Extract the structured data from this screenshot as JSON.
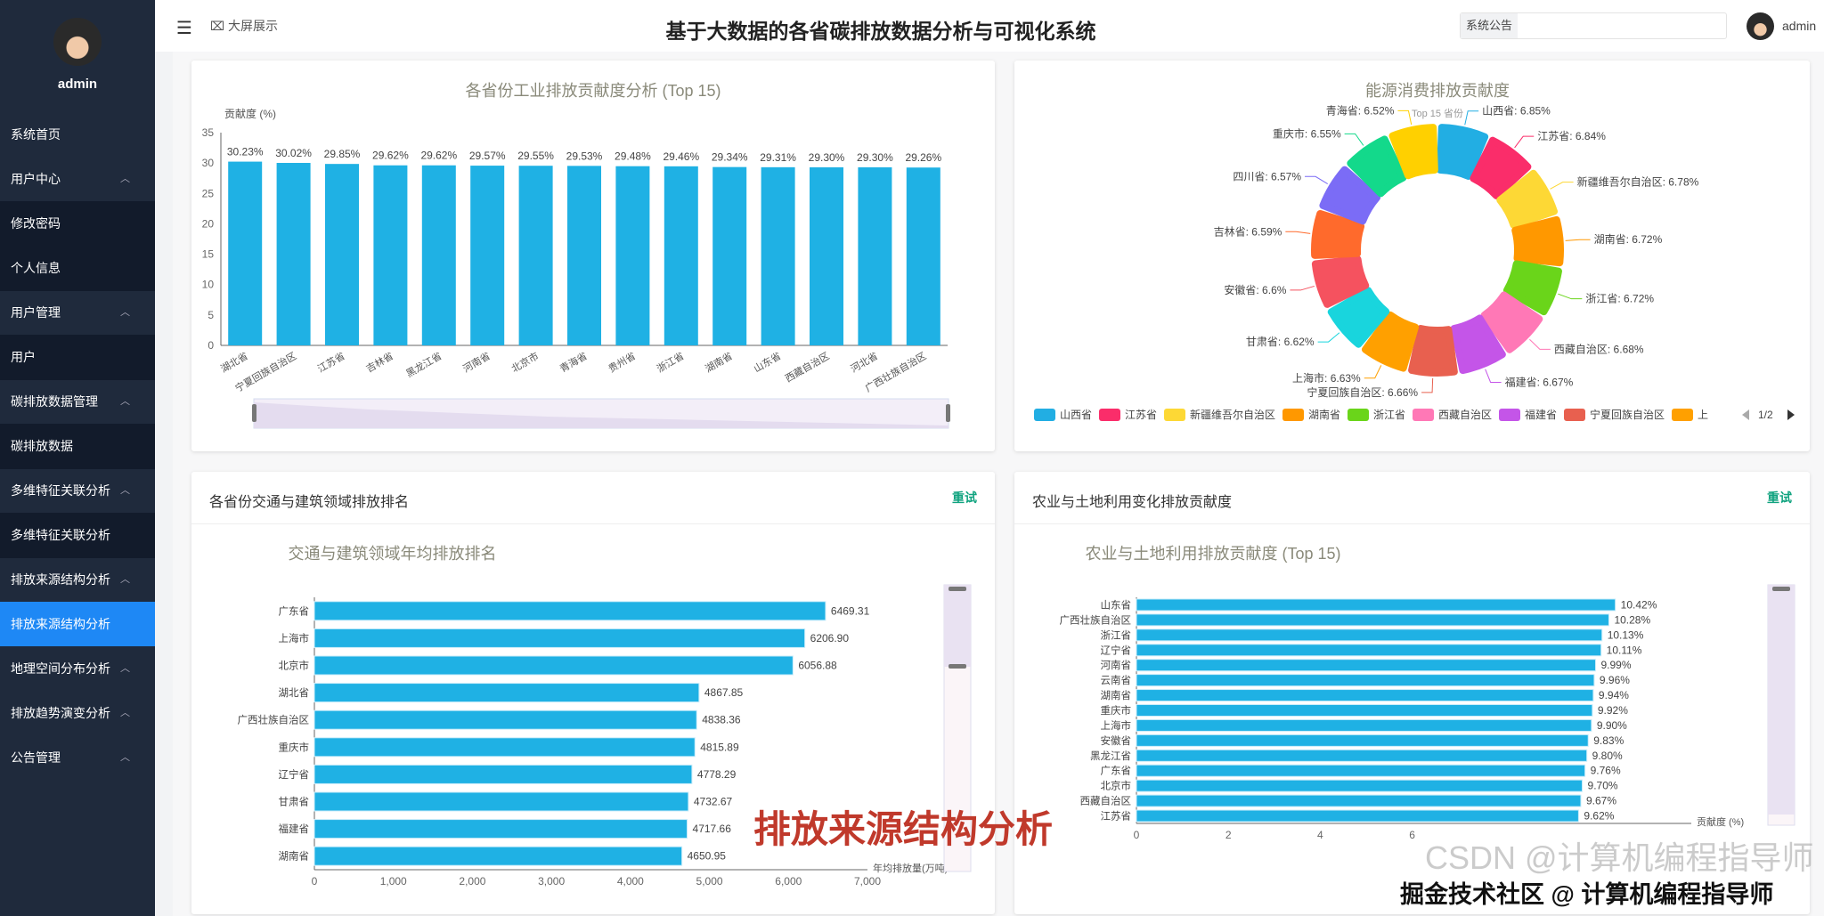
{
  "sidebar": {
    "user": "admin",
    "items": [
      {
        "label": "系统首页",
        "type": "item"
      },
      {
        "label": "用户中心",
        "type": "group"
      },
      {
        "label": "修改密码",
        "type": "sub"
      },
      {
        "label": "个人信息",
        "type": "sub"
      },
      {
        "label": "用户管理",
        "type": "group"
      },
      {
        "label": "用户",
        "type": "sub"
      },
      {
        "label": "碳排放数据管理",
        "type": "group"
      },
      {
        "label": "碳排放数据",
        "type": "sub"
      },
      {
        "label": "多维特征关联分析",
        "type": "group"
      },
      {
        "label": "多维特征关联分析",
        "type": "sub"
      },
      {
        "label": "排放来源结构分析",
        "type": "group"
      },
      {
        "label": "排放来源结构分析",
        "type": "active"
      },
      {
        "label": "地理空间分布分析",
        "type": "group"
      },
      {
        "label": "排放趋势演变分析",
        "type": "group"
      },
      {
        "label": "公告管理",
        "type": "group"
      }
    ]
  },
  "header": {
    "big_screen": "大屏展示",
    "title": "基于大数据的各省碳排放数据分析与可视化系统",
    "notice": "系统公告",
    "user": "admin"
  },
  "caption": "排放来源结构分析",
  "watermark": {
    "back": "CSDN @计算机编程指导师",
    "front": "掘金技术社区 @ 计算机编程指导师"
  },
  "cards": {
    "transport": {
      "title": "各省份交通与建筑领域排放排名",
      "retry": "重试"
    },
    "agri": {
      "title": "农业与土地利用变化排放贡献度",
      "retry": "重试"
    }
  },
  "chart_data": [
    {
      "type": "bar",
      "title": "各省份工业排放贡献度分析 (Top 15)",
      "ylabel": "贡献度 (%)",
      "ylim": [
        0,
        35
      ],
      "yticks": [
        0,
        5,
        10,
        15,
        20,
        25,
        30,
        35
      ],
      "color": "#1fb1e4",
      "categories": [
        "湖北省",
        "宁夏回族自治区",
        "江苏省",
        "吉林省",
        "黑龙江省",
        "河南省",
        "北京市",
        "青海省",
        "贵州省",
        "浙江省",
        "湖南省",
        "山东省",
        "西藏自治区",
        "河北省",
        "广西壮族自治区"
      ],
      "values": [
        30.23,
        30.02,
        29.85,
        29.62,
        29.62,
        29.57,
        29.55,
        29.53,
        29.48,
        29.46,
        29.34,
        29.31,
        29.3,
        29.3,
        29.26
      ],
      "labels": [
        "30.23%",
        "30.02%",
        "29.85%",
        "29.62%",
        "29.62%",
        "29.57%",
        "29.55%",
        "29.53%",
        "29.48%",
        "29.46%",
        "29.34%",
        "29.31%",
        "29.30%",
        "29.30%",
        "29.26%"
      ]
    },
    {
      "type": "pie",
      "title": "能源消费排放贡献度",
      "subtitle": "Top 15 省份",
      "legend_page": "1/2",
      "legend_placement": "bottom",
      "slices": [
        {
          "name": "山西省",
          "value": 6.85,
          "label": "山西省: 6.85%",
          "color": "#22aee3"
        },
        {
          "name": "江苏省",
          "value": 6.84,
          "label": "江苏省: 6.84%",
          "color": "#fa2d6a"
        },
        {
          "name": "新疆维吾尔自治区",
          "value": 6.78,
          "label": "新疆维吾尔自治区: 6.78%",
          "color": "#fdd835"
        },
        {
          "name": "湖南省",
          "value": 6.72,
          "label": "湖南省: 6.72%",
          "color": "#ff9800"
        },
        {
          "name": "浙江省",
          "value": 6.72,
          "label": "浙江省: 6.72%",
          "color": "#6ad51a"
        },
        {
          "name": "西藏自治区",
          "value": 6.68,
          "label": "西藏自治区: 6.68%",
          "color": "#ff78b6"
        },
        {
          "name": "福建省",
          "value": 6.67,
          "label": "福建省: 6.67%",
          "color": "#c455e8"
        },
        {
          "name": "宁夏回族自治区",
          "value": 6.66,
          "label": "宁夏回族自治区: 6.66%",
          "color": "#e8604f"
        },
        {
          "name": "上海市",
          "value": 6.63,
          "label": "上海市: 6.63%",
          "color": "#ffa000"
        },
        {
          "name": "甘肃省",
          "value": 6.62,
          "label": "甘肃省: 6.62%",
          "color": "#19d5dd"
        },
        {
          "name": "安徽省",
          "value": 6.6,
          "label": "安徽省: 6.6%",
          "color": "#f5525f"
        },
        {
          "name": "吉林省",
          "value": 6.59,
          "label": "吉林省: 6.59%",
          "color": "#ff6a2c"
        },
        {
          "name": "四川省",
          "value": 6.57,
          "label": "四川省: 6.57%",
          "color": "#7b6cf6"
        },
        {
          "name": "重庆市",
          "value": 6.55,
          "label": "重庆市: 6.55%",
          "color": "#13d98b"
        },
        {
          "name": "青海省",
          "value": 6.52,
          "label": "青海省: 6.52%",
          "color": "#ffd000"
        }
      ],
      "legend_visible": [
        "山西省",
        "江苏省",
        "新疆维吾尔自治区",
        "湖南省",
        "浙江省",
        "西藏自治区",
        "福建省",
        "宁夏回族自治区",
        "上"
      ]
    },
    {
      "type": "bar",
      "orientation": "horizontal",
      "title": "交通与建筑领域年均排放排名",
      "xlabel": "年均排放量(万吨)",
      "xlim": [
        0,
        7000
      ],
      "xticks": [
        0,
        1000,
        2000,
        3000,
        4000,
        5000,
        6000,
        7000
      ],
      "xtick_labels": [
        "0",
        "1,000",
        "2,000",
        "3,000",
        "4,000",
        "5,000",
        "6,000",
        "7,000"
      ],
      "color": "#1fb1e4",
      "categories": [
        "广东省",
        "上海市",
        "北京市",
        "湖北省",
        "广西壮族自治区",
        "重庆市",
        "辽宁省",
        "甘肃省",
        "福建省",
        "湖南省"
      ],
      "values": [
        6469.31,
        6206.9,
        6056.88,
        4867.85,
        4838.36,
        4815.89,
        4778.29,
        4732.67,
        4717.66,
        4650.95
      ],
      "labels": [
        "6469.31",
        "6206.90",
        "6056.88",
        "4867.85",
        "4838.36",
        "4815.89",
        "4778.29",
        "4732.67",
        "4717.66",
        "4650.95"
      ]
    },
    {
      "type": "bar",
      "orientation": "horizontal",
      "title": "农业与土地利用排放贡献度 (Top 15)",
      "xlabel": "贡献度 (%)",
      "xticks": [
        0,
        2,
        4,
        6
      ],
      "xtick_labels": [
        "0",
        "2",
        "4",
        "6"
      ],
      "color": "#1fb1e4",
      "categories": [
        "山东省",
        "广西壮族自治区",
        "浙江省",
        "辽宁省",
        "河南省",
        "云南省",
        "湖南省",
        "重庆市",
        "上海市",
        "安徽省",
        "黑龙江省",
        "广东省",
        "北京市",
        "西藏自治区",
        "江苏省"
      ],
      "values": [
        10.42,
        10.28,
        10.13,
        10.11,
        9.99,
        9.96,
        9.94,
        9.92,
        9.9,
        9.83,
        9.8,
        9.76,
        9.7,
        9.67,
        9.62
      ],
      "labels": [
        "10.42%",
        "10.28%",
        "10.13%",
        "10.11%",
        "9.99%",
        "9.96%",
        "9.94%",
        "9.92%",
        "9.90%",
        "9.83%",
        "9.80%",
        "9.76%",
        "9.70%",
        "9.67%",
        "9.62%"
      ]
    }
  ]
}
